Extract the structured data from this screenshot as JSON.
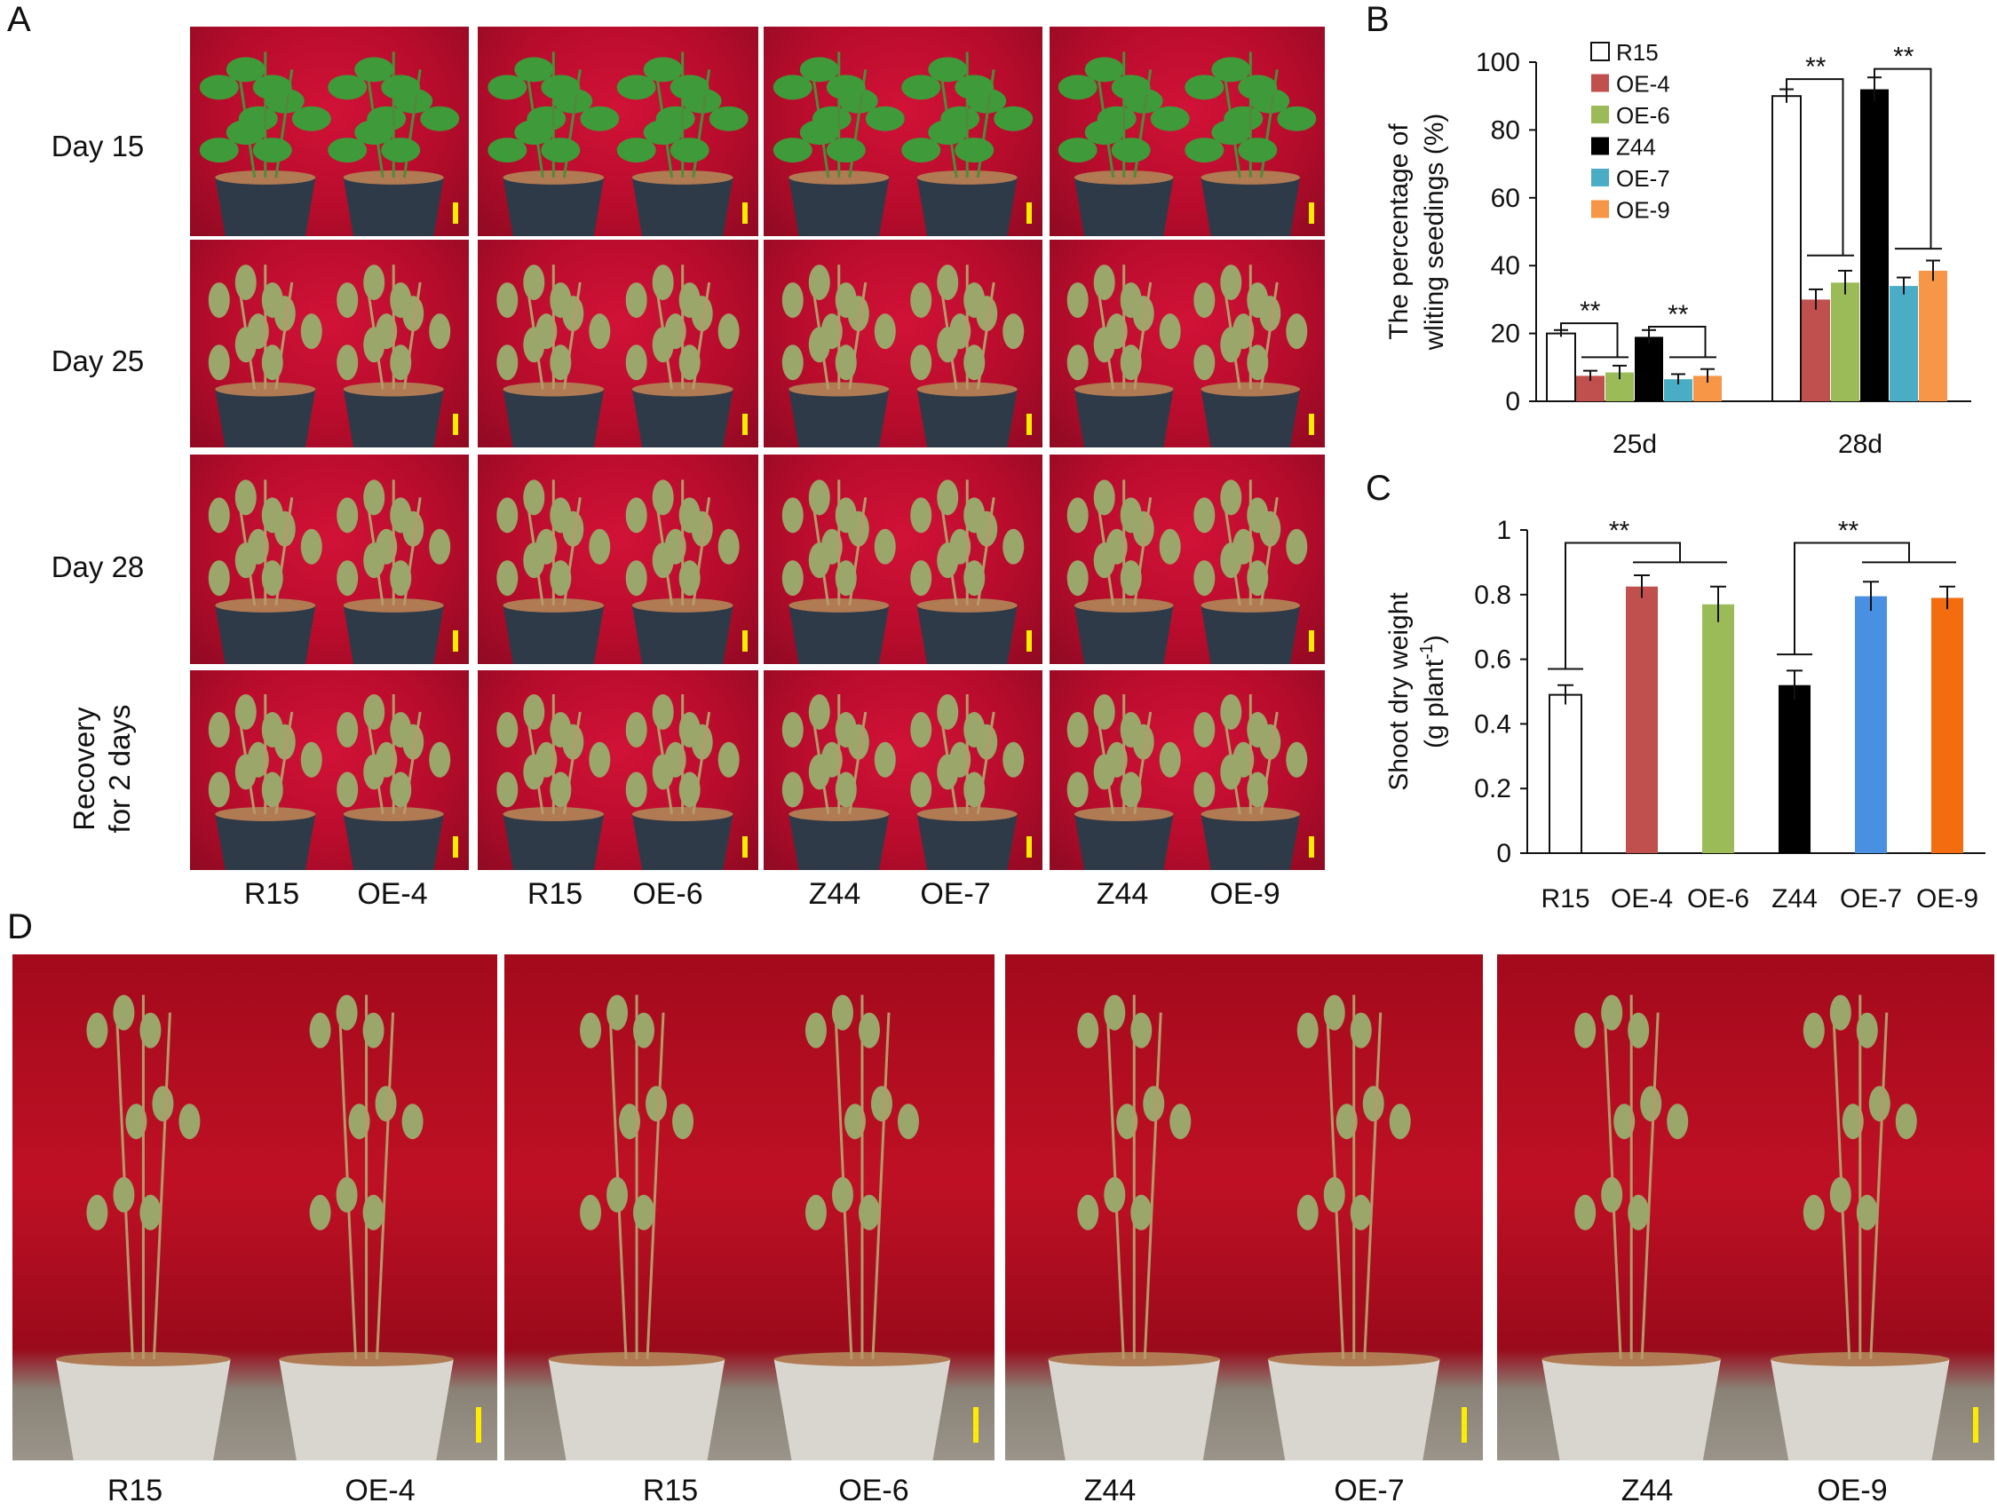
{
  "panels": {
    "A": "A",
    "B": "B",
    "C": "C",
    "D": "D"
  },
  "panel_a": {
    "row_labels": [
      "Day 15",
      "Day 25",
      "Day 28"
    ],
    "recovery_label_line1": "Recovery",
    "recovery_label_line2": "for 2 days",
    "column_pairs": [
      {
        "left": "R15",
        "right": "OE-4"
      },
      {
        "left": "R15",
        "right": "OE-6"
      },
      {
        "left": "Z44",
        "right": "OE-7"
      },
      {
        "left": "Z44",
        "right": "OE-9"
      }
    ]
  },
  "panel_d": {
    "column_pairs": [
      {
        "left": "R15",
        "right": "OE-4"
      },
      {
        "left": "R15",
        "right": "OE-6"
      },
      {
        "left": "Z44",
        "right": "OE-7"
      },
      {
        "left": "Z44",
        "right": "OE-9"
      }
    ]
  },
  "colors": {
    "R15": "#ffffff",
    "OE-4": "#c0504d",
    "OE-6": "#9bbb59",
    "Z44": "#000000",
    "OE-7_B": "#4bacc6",
    "OE-9_B": "#f79646",
    "OE-7_C": "#4a90e2",
    "OE-9_C": "#f36c10",
    "scale_bar": "#ffeb00",
    "photo_background": "#c1102e"
  },
  "chart_data": [
    {
      "type": "bar",
      "title": "",
      "ylabel_line1": "The percentage of",
      "ylabel_line2": "wliting seedings (%)",
      "xlabel": "",
      "ylim": [
        0,
        100
      ],
      "yticks": [
        "0",
        "20",
        "40",
        "60",
        "80",
        "100"
      ],
      "categories": [
        "25d",
        "28d"
      ],
      "series": [
        {
          "name": "R15",
          "values": [
            20,
            90
          ],
          "errors": [
            1,
            2
          ]
        },
        {
          "name": "OE-4",
          "values": [
            7.5,
            30
          ],
          "errors": [
            1.5,
            3
          ]
        },
        {
          "name": "OE-6",
          "values": [
            8.5,
            35
          ],
          "errors": [
            2,
            3.5
          ]
        },
        {
          "name": "Z44",
          "values": [
            19,
            92
          ],
          "errors": [
            2,
            3.5
          ]
        },
        {
          "name": "OE-7",
          "values": [
            6.5,
            34
          ],
          "errors": [
            1.5,
            2.5
          ]
        },
        {
          "name": "OE-9",
          "values": [
            7.5,
            38.5
          ],
          "errors": [
            2,
            3
          ]
        }
      ],
      "significance": [
        "**",
        "**",
        "**",
        "**"
      ]
    },
    {
      "type": "bar",
      "title": "",
      "ylabel_line1": "Shoot dry weight",
      "ylabel_line2_base": "(g plant",
      "ylabel_line2_sup": "-1",
      "ylabel_line2_end": ")",
      "xlabel": "",
      "ylim": [
        0,
        1
      ],
      "yticks": [
        "0",
        "0.2",
        "0.4",
        "0.6",
        "0.8",
        "1"
      ],
      "categories": [
        "R15",
        "OE-4",
        "OE-6",
        "Z44",
        "OE-7",
        "OE-9"
      ],
      "values": [
        0.49,
        0.825,
        0.77,
        0.52,
        0.795,
        0.79
      ],
      "errors": [
        0.03,
        0.035,
        0.055,
        0.045,
        0.045,
        0.035
      ],
      "significance": [
        "**",
        "**"
      ]
    }
  ]
}
